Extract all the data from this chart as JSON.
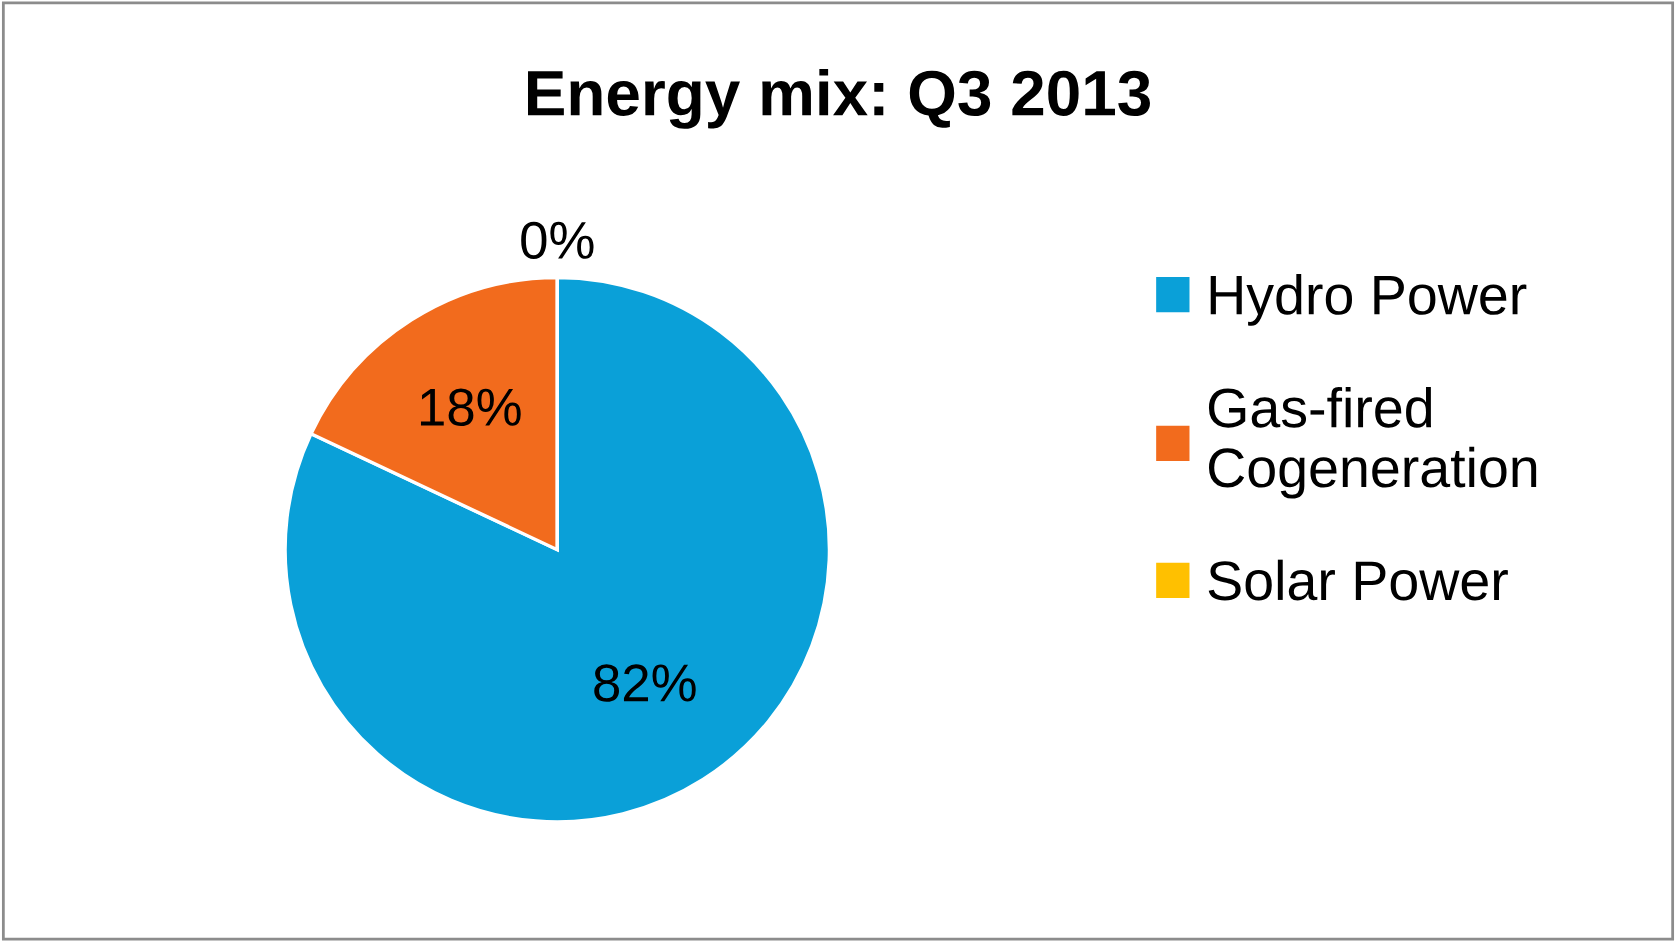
{
  "chart_data": {
    "type": "pie",
    "title": "Energy mix: Q3 2013",
    "categories": [
      "Hydro Power",
      "Gas-fired\nCogeneration",
      "Solar Power"
    ],
    "values": [
      82,
      18,
      0
    ],
    "colors": [
      "#0aa0d8",
      "#f26b1d",
      "#ffc000"
    ],
    "value_labels": [
      "82%",
      "18%",
      "0%"
    ],
    "legend": "right"
  }
}
